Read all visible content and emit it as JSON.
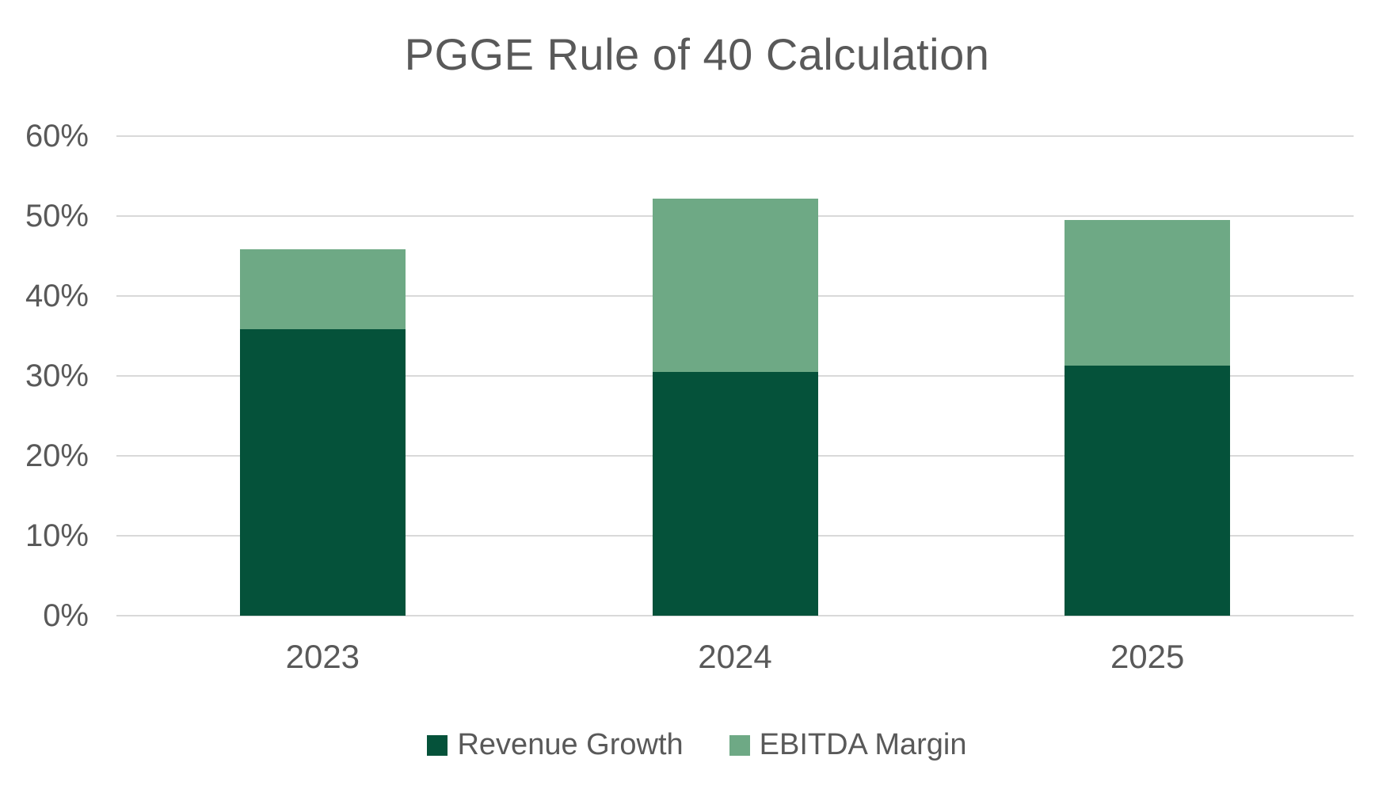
{
  "title": "PGGE Rule of 40 Calculation",
  "colors": {
    "revenue_growth": "#05523A",
    "ebitda_margin": "#6EA985",
    "gridline": "#D9D9D9",
    "text": "#595959",
    "background": "#FFFFFF"
  },
  "legend": {
    "items": [
      {
        "label": "Revenue Growth",
        "color": "#05523A"
      },
      {
        "label": "EBITDA Margin",
        "color": "#6EA985"
      }
    ]
  },
  "chart_data": {
    "type": "bar",
    "stacked": true,
    "title": "PGGE Rule of 40 Calculation",
    "categories": [
      "2023",
      "2024",
      "2025"
    ],
    "series": [
      {
        "name": "Revenue Growth",
        "color": "#05523A",
        "values": [
          35.8,
          30.5,
          31.3
        ]
      },
      {
        "name": "EBITDA Margin",
        "color": "#6EA985",
        "values": [
          10.0,
          21.7,
          18.2
        ]
      }
    ],
    "totals": [
      45.8,
      52.2,
      49.5
    ],
    "xlabel": "",
    "ylabel": "",
    "ylim": [
      0,
      60
    ],
    "ytick_step": 10,
    "yticks": [
      "0%",
      "10%",
      "20%",
      "30%",
      "40%",
      "50%",
      "60%"
    ],
    "grid": "horizontal",
    "legend_position": "bottom"
  }
}
